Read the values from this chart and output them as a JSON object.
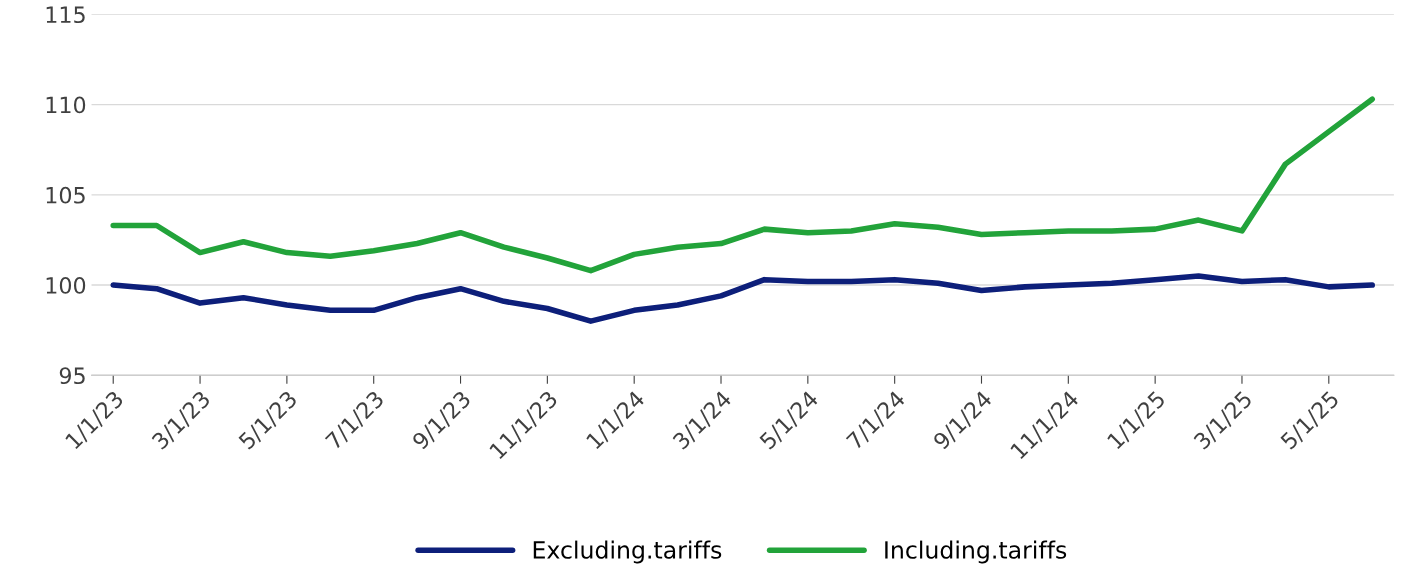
{
  "chart_data": {
    "type": "line",
    "categories": [
      "1/1/23",
      null,
      "3/1/23",
      null,
      "5/1/23",
      null,
      "7/1/23",
      null,
      "9/1/23",
      null,
      "11/1/23",
      null,
      "1/1/24",
      null,
      "3/1/24",
      null,
      "5/1/24",
      null,
      "7/1/24",
      null,
      "9/1/24",
      null,
      "11/1/24",
      null,
      "1/1/25",
      null,
      "3/1/25",
      null,
      "5/1/25",
      null
    ],
    "series": [
      {
        "name": "Excluding.tariffs",
        "color": "#0d1f7a",
        "values": [
          100.0,
          99.8,
          99.0,
          99.3,
          98.9,
          98.6,
          98.6,
          99.3,
          99.8,
          99.1,
          98.7,
          98.0,
          98.6,
          98.9,
          99.4,
          100.3,
          100.2,
          100.2,
          100.3,
          100.1,
          99.7,
          99.9,
          100.0,
          100.1,
          100.3,
          100.5,
          100.2,
          100.3,
          99.9,
          100.0
        ]
      },
      {
        "name": "Including.tariffs",
        "color": "#22a33a",
        "values": [
          103.3,
          103.3,
          101.8,
          102.4,
          101.8,
          101.6,
          101.9,
          102.3,
          102.9,
          102.1,
          101.5,
          100.8,
          101.7,
          102.1,
          102.3,
          103.1,
          102.9,
          103.0,
          103.4,
          103.2,
          102.8,
          102.9,
          103.0,
          103.0,
          103.1,
          103.6,
          103.0,
          106.7,
          108.5,
          110.3
        ]
      }
    ],
    "ylim": [
      95,
      115
    ],
    "yticks": [
      95,
      100,
      105,
      110,
      115
    ],
    "grid": "y",
    "legend": "bottom",
    "marker": "none",
    "line_style": "solid"
  }
}
